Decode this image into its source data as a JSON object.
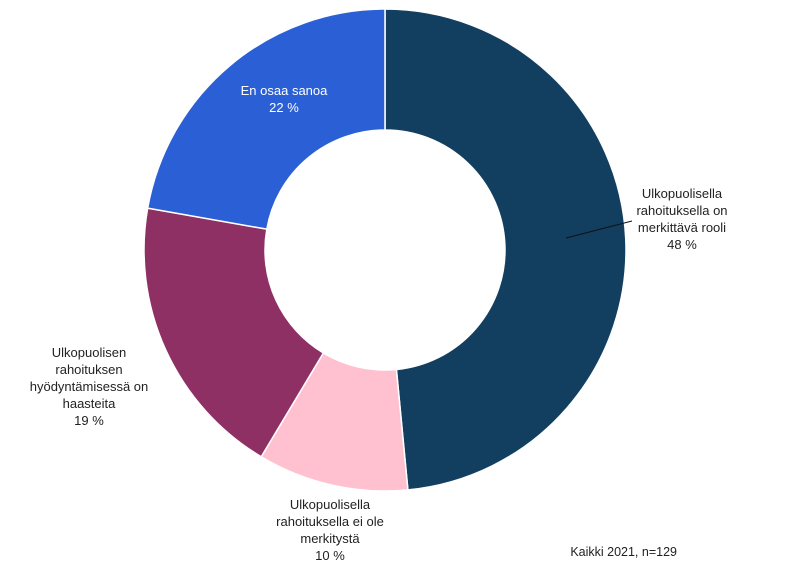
{
  "chart_data": {
    "type": "pie",
    "donut": true,
    "title": "",
    "unit": "%",
    "slices": [
      {
        "label_lines": [
          "Ulkopuolisella",
          "rahoituksella on",
          "merkittävä rooli"
        ],
        "value": 48,
        "value_label": "48 %",
        "color": "#123f60",
        "label_inside": false
      },
      {
        "label_lines": [
          "Ulkopuolisella",
          "rahoituksella ei ole",
          "merkitystä"
        ],
        "value": 10,
        "value_label": "10 %",
        "color": "#ffc0d0",
        "label_inside": false
      },
      {
        "label_lines": [
          "Ulkopuolisen",
          "rahoituksen",
          "hyödyntämisessä on",
          "haasteita"
        ],
        "value": 19,
        "value_label": "19 %",
        "color": "#8e3064",
        "label_inside": false
      },
      {
        "label_lines": [
          "En osaa sanoa"
        ],
        "value": 22,
        "value_label": "22 %",
        "color": "#2a5fd6",
        "label_inside": true
      }
    ]
  },
  "footnote": "Kaikki 2021, n=129"
}
